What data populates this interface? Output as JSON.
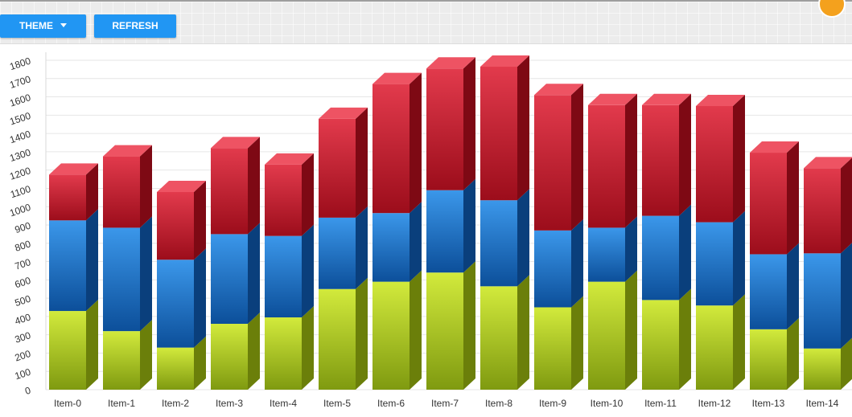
{
  "toolbar": {
    "theme_label": "THEME",
    "theme_icon": "caret-down-icon",
    "refresh_label": "REFRESH",
    "button_color": "#2196f3"
  },
  "chart_data": {
    "type": "bar",
    "stacked": true,
    "style": "3d",
    "title": "",
    "xlabel": "",
    "ylabel": "",
    "ylim": [
      0,
      1800
    ],
    "y_ticks": [
      "0",
      "100",
      "200",
      "300",
      "400",
      "500",
      "600",
      "700",
      "800",
      "900",
      "1000",
      "1100",
      "1200",
      "1300",
      "1400",
      "1500",
      "1600",
      "1700",
      "1800"
    ],
    "grid": true,
    "legend": "none",
    "categories": [
      "Item-0",
      "Item-1",
      "Item-2",
      "Item-3",
      "Item-4",
      "Item-5",
      "Item-6",
      "Item-7",
      "Item-8",
      "Item-9",
      "Item-10",
      "Item-11",
      "Item-12",
      "Item-13",
      "Item-14"
    ],
    "series": [
      {
        "color": "#b8d62a",
        "values": [
          430,
          320,
          230,
          360,
          395,
          550,
          590,
          640,
          565,
          450,
          590,
          490,
          460,
          330,
          225
        ]
      },
      {
        "color": "#1f78d1",
        "values": [
          495,
          565,
          480,
          490,
          445,
          390,
          375,
          450,
          470,
          420,
          295,
          460,
          455,
          410,
          520
        ]
      },
      {
        "color": "#d61a2e",
        "values": [
          250,
          390,
          370,
          470,
          390,
          540,
          705,
          665,
          730,
          740,
          670,
          605,
          635,
          555,
          465
        ]
      }
    ]
  }
}
